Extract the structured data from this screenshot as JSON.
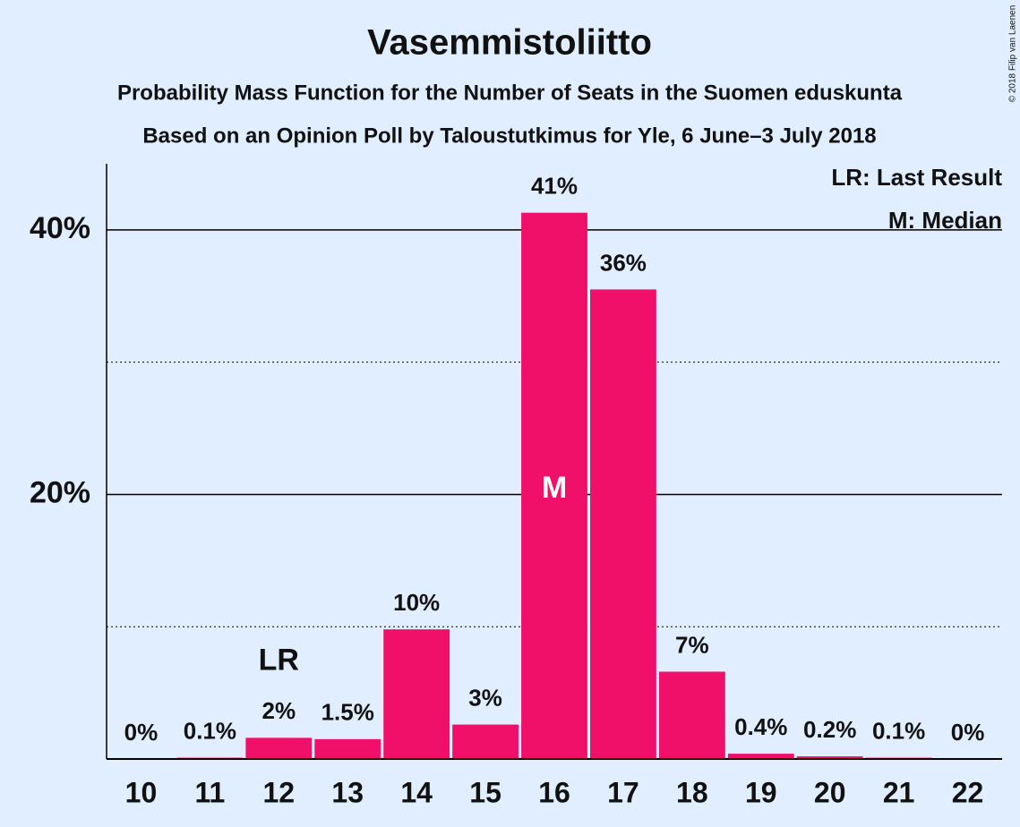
{
  "chart_data": {
    "type": "bar",
    "title": "Vasemmistoliitto",
    "subtitle": "Probability Mass Function for the Number of Seats in the Suomen eduskunta",
    "subtitle2": "Based on an Opinion Poll by Taloustutkimus for Yle, 6 June–3 July 2018",
    "copyright": "© 2018 Filip van Laenen",
    "categories": [
      "10",
      "11",
      "12",
      "13",
      "14",
      "15",
      "16",
      "17",
      "18",
      "19",
      "20",
      "21",
      "22"
    ],
    "values": [
      0,
      0.1,
      1.6,
      1.5,
      9.8,
      2.6,
      41.3,
      35.5,
      6.6,
      0.4,
      0.2,
      0.1,
      0
    ],
    "value_labels": [
      "0%",
      "0.1%",
      "2%",
      "1.5%",
      "10%",
      "3%",
      "41%",
      "36%",
      "7%",
      "0.4%",
      "0.2%",
      "0.1%",
      "0%"
    ],
    "color": "#f0106a",
    "ylim": [
      0,
      45
    ],
    "yticks": [
      {
        "value": 20,
        "label": "20%"
      },
      {
        "value": 40,
        "label": "40%"
      }
    ],
    "minor_gridlines": [
      10,
      30
    ],
    "grid": true,
    "annotations": [
      {
        "label": "LR",
        "x": "12"
      },
      {
        "label": "M",
        "x": "16"
      }
    ],
    "legend": [
      "LR: Last Result",
      "M: Median"
    ],
    "legend_position": "top-right"
  }
}
